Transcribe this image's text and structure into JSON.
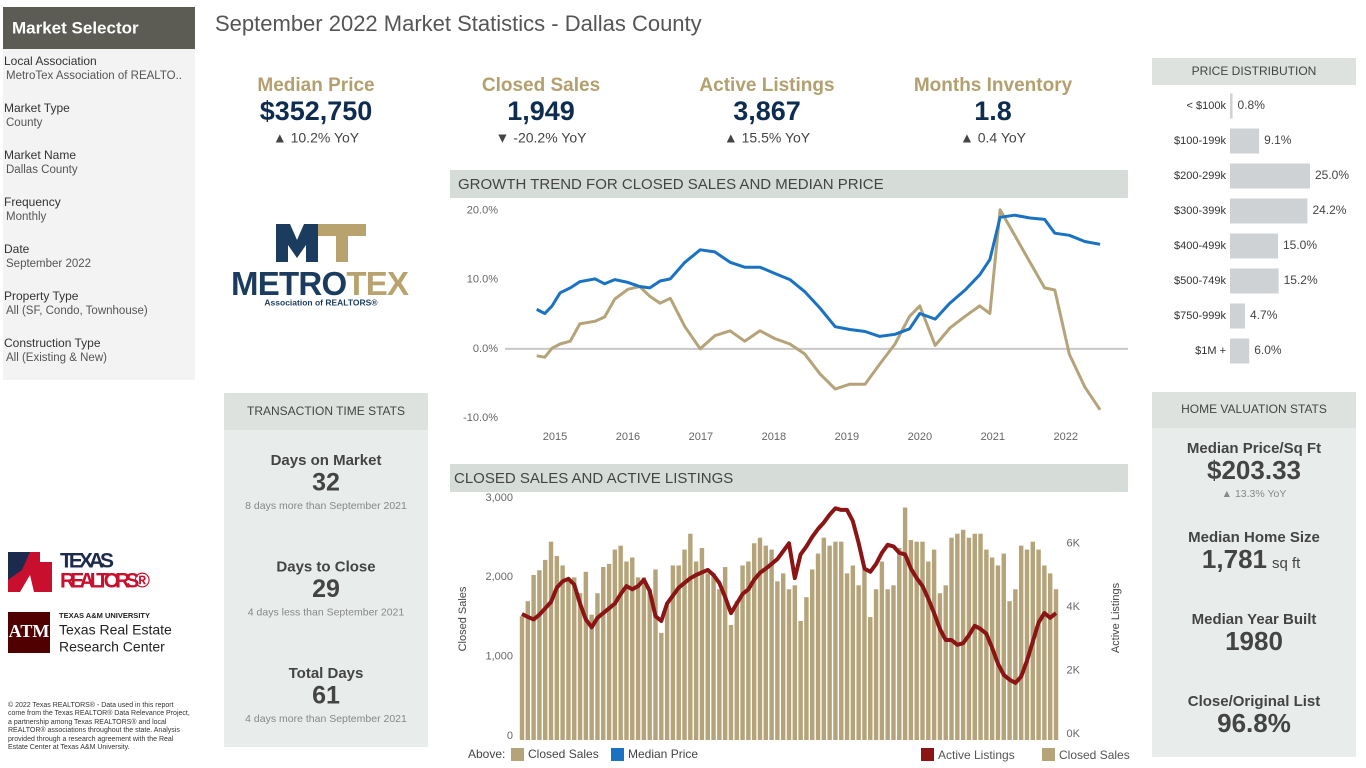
{
  "sidebar": {
    "title": "Market Selector",
    "fields": [
      {
        "label": "Local Association",
        "value": "MetroTex Association of REALTO.."
      },
      {
        "label": "Market Type",
        "value": "County"
      },
      {
        "label": "Market Name",
        "value": "Dallas County"
      },
      {
        "label": "Frequency",
        "value": "Monthly"
      },
      {
        "label": "Date",
        "value": "September 2022"
      },
      {
        "label": "Property Type",
        "value": "All (SF, Condo, Townhouse)"
      },
      {
        "label": "Construction Type",
        "value": "All (Existing & New)"
      }
    ]
  },
  "title": "September 2022 Market Statistics - Dallas County",
  "kpis": [
    {
      "label": "Median Price",
      "value": "$352,750",
      "change": "▲ 10.2% YoY"
    },
    {
      "label": "Closed Sales",
      "value": "1,949",
      "change": "▼ -20.2% YoY"
    },
    {
      "label": "Active Listings",
      "value": "3,867",
      "change": "▲ 15.5% YoY"
    },
    {
      "label": "Months Inventory",
      "value": "1.8",
      "change": "▲ 0.4 YoY"
    }
  ],
  "logos": {
    "metro": "METRO",
    "tex": "TEX",
    "association": "Association of REALTORS®",
    "texas": "TEXAS",
    "realtors": "REALTORS®",
    "tamu_univ": "TEXAS A&M UNIVERSITY",
    "tamu_line1": "Texas Real Estate",
    "tamu_line2": "Research Center"
  },
  "footnote": "© 2022 Texas REALTORS® - Data used in this report come from the Texas REALTOR® Data Relevance Project, a partnership among Texas REALTORS® and local REALTOR® associations throughout the state. Analysis provided through a research agreement with the Real Estate Center at Texas A&M University.",
  "transaction_stats": {
    "title": "TRANSACTION TIME STATS",
    "items": [
      {
        "label": "Days on Market",
        "value": "32",
        "note": "8 days more than September 2021"
      },
      {
        "label": "Days to Close",
        "value": "29",
        "note": "4 days less than September 2021"
      },
      {
        "label": "Total Days",
        "value": "61",
        "note": "4 days more than September 2021"
      }
    ]
  },
  "home_valuation": {
    "title": "HOME VALUATION STATS",
    "items": [
      {
        "label": "Median Price/Sq Ft",
        "value": "$203.33",
        "note": "▲ 13.3% YoY"
      },
      {
        "label": "Median Home Size",
        "value": "1,781",
        "unit": "sq ft"
      },
      {
        "label": "Median Year Built",
        "value": "1980"
      },
      {
        "label": "Close/Original List",
        "value": "96.8%"
      }
    ]
  },
  "chart_data": [
    {
      "type": "hbar",
      "title": "PRICE DISTRIBUTION",
      "categories": [
        "< $100k",
        "$100-199k",
        "$200-299k",
        "$300-399k",
        "$400-499k",
        "$500-749k",
        "$750-999k",
        "$1M +"
      ],
      "values": [
        0.8,
        9.1,
        25.0,
        24.2,
        15.0,
        15.2,
        4.7,
        6.0
      ],
      "value_labels": [
        "0.8%",
        "9.1%",
        "25.0%",
        "24.2%",
        "15.0%",
        "15.2%",
        "4.7%",
        "6.0%"
      ],
      "color": "#cfd2d4"
    },
    {
      "type": "line",
      "title": "GROWTH TREND FOR CLOSED SALES AND MEDIAN PRICE",
      "x": [
        2014.75,
        2014.86,
        2014.96,
        2015.07,
        2015.21,
        2015.34,
        2015.55,
        2015.68,
        2015.82,
        2016,
        2016.16,
        2016.3,
        2016.44,
        2016.58,
        2016.78,
        2016.99,
        2017.19,
        2017.4,
        2017.6,
        2017.81,
        2018.01,
        2018.22,
        2018.42,
        2018.63,
        2018.84,
        2019.04,
        2019.25,
        2019.45,
        2019.66,
        2019.86,
        2020,
        2020.21,
        2020.41,
        2020.62,
        2020.82,
        2020.96,
        2021.1,
        2021.3,
        2021.51,
        2021.71,
        2021.85,
        2022.05,
        2022.26,
        2022.47
      ],
      "xlim": [
        2013.63,
        2022.88
      ],
      "xticks": [
        2015,
        2016,
        2017,
        2018,
        2019,
        2020,
        2021,
        2022
      ],
      "ylim": [
        -11,
        21.5
      ],
      "yticks": [
        {
          "value": -10,
          "label": "-10.0%"
        },
        {
          "value": 0,
          "label": "0.0%"
        },
        {
          "value": 10,
          "label": "10.0%"
        },
        {
          "value": 20,
          "label": "20.0%"
        }
      ],
      "zero_line": true,
      "legend_title": "Above:",
      "series": [
        {
          "name": "Closed Sales",
          "color": "#b5a47a",
          "values": [
            -1,
            -1.2,
            0.1,
            0.7,
            1.1,
            3.6,
            4,
            4.6,
            7.2,
            8.6,
            9,
            7.6,
            6.6,
            7.3,
            3.2,
            0,
            1.9,
            2.6,
            1.1,
            2.6,
            1.5,
            0.7,
            -0.7,
            -3.6,
            -5.8,
            -5.1,
            -5.1,
            -2.2,
            0.7,
            4.7,
            6.2,
            0.5,
            3,
            4.7,
            6.2,
            5.1,
            20.1,
            16.4,
            12.5,
            8.8,
            8.5,
            -0.8,
            -5.5,
            -8.8
          ]
        },
        {
          "name": "Median Price",
          "color": "#1a73c2",
          "values": [
            5.7,
            5.1,
            6.2,
            8.1,
            8.8,
            9.7,
            10.1,
            9.4,
            10,
            9.6,
            9,
            8.8,
            9.8,
            10.1,
            12.5,
            14.3,
            14,
            12.5,
            11.8,
            11.8,
            10.9,
            10,
            8.3,
            5.9,
            3.2,
            2.8,
            2.5,
            1.8,
            2.1,
            2.9,
            5.1,
            4.3,
            6.6,
            8.5,
            10.7,
            12.9,
            19,
            19.3,
            18.9,
            18.7,
            16.7,
            16.4,
            15.5,
            15.1
          ]
        }
      ]
    },
    {
      "type": "bar_line",
      "title": "CLOSED SALES AND ACTIVE LISTINGS",
      "ylabel": "Closed Sales",
      "y2label": "Active Listings",
      "ylim": [
        0,
        3000
      ],
      "yticks": [
        0,
        {
          "value": 1000,
          "label": "1,000"
        },
        {
          "value": 2000,
          "label": "2,000"
        },
        {
          "value": 3000,
          "label": "3,000"
        }
      ],
      "y2lim": [
        0,
        7500
      ],
      "y2ticks": [
        {
          "value": 0,
          "label": "0K"
        },
        {
          "value": 2000,
          "label": "2K"
        },
        {
          "value": 4000,
          "label": "4K"
        },
        {
          "value": 6000,
          "label": "6K"
        }
      ],
      "series": [
        {
          "name": "Active Listings",
          "color": "#8b1414",
          "type": "line",
          "axis": "y2",
          "values": [
            3970,
            3880,
            3800,
            3950,
            4150,
            4350,
            4800,
            5000,
            5080,
            4900,
            4300,
            3800,
            3550,
            3850,
            4000,
            4150,
            4300,
            4600,
            4850,
            4750,
            4850,
            5050,
            4700,
            3900,
            3750,
            4300,
            4550,
            4800,
            4950,
            5100,
            5200,
            5280,
            5360,
            5200,
            4950,
            4500,
            4000,
            4300,
            4600,
            4750,
            5050,
            5270,
            5400,
            5550,
            5700,
            5950,
            6200,
            5100,
            5850,
            6100,
            6400,
            6650,
            6850,
            7100,
            7300,
            7250,
            7250,
            6900,
            6200,
            5400,
            5300,
            5550,
            5900,
            6150,
            6100,
            5900,
            5850,
            5400,
            5100,
            4850,
            4450,
            4000,
            3500,
            3150,
            3150,
            3000,
            3050,
            3300,
            3600,
            3500,
            3350,
            2900,
            2400,
            2050,
            1900,
            1800,
            2000,
            2500,
            3100,
            3700,
            4000,
            3850,
            4000
          ]
        },
        {
          "name": "Closed Sales",
          "color": "#b5a47a",
          "type": "bar",
          "values": [
            1560,
            1750,
            2080,
            2140,
            2270,
            2500,
            2320,
            2200,
            2010,
            2050,
            1850,
            2120,
            1580,
            1850,
            2180,
            2220,
            2400,
            2450,
            2250,
            2300,
            2050,
            2050,
            1900,
            2150,
            1350,
            1700,
            2200,
            2200,
            2400,
            2600,
            2250,
            2420,
            2100,
            2100,
            1900,
            2180,
            1450,
            1750,
            2200,
            2250,
            2480,
            2550,
            2450,
            2400,
            2000,
            2100,
            1900,
            1950,
            1500,
            1800,
            2150,
            2350,
            2550,
            2450,
            2500,
            2500,
            2100,
            2200,
            1950,
            2150,
            1550,
            1900,
            2250,
            1900,
            1950,
            2420,
            2930,
            2520,
            2500,
            2500,
            2250,
            2400,
            1850,
            1950,
            2550,
            2600,
            2650,
            2550,
            2600,
            2600,
            2400,
            2300,
            2200,
            2350,
            1750,
            1900,
            2450,
            2400,
            2500,
            2400,
            2200,
            2100,
            1900
          ]
        }
      ]
    }
  ]
}
